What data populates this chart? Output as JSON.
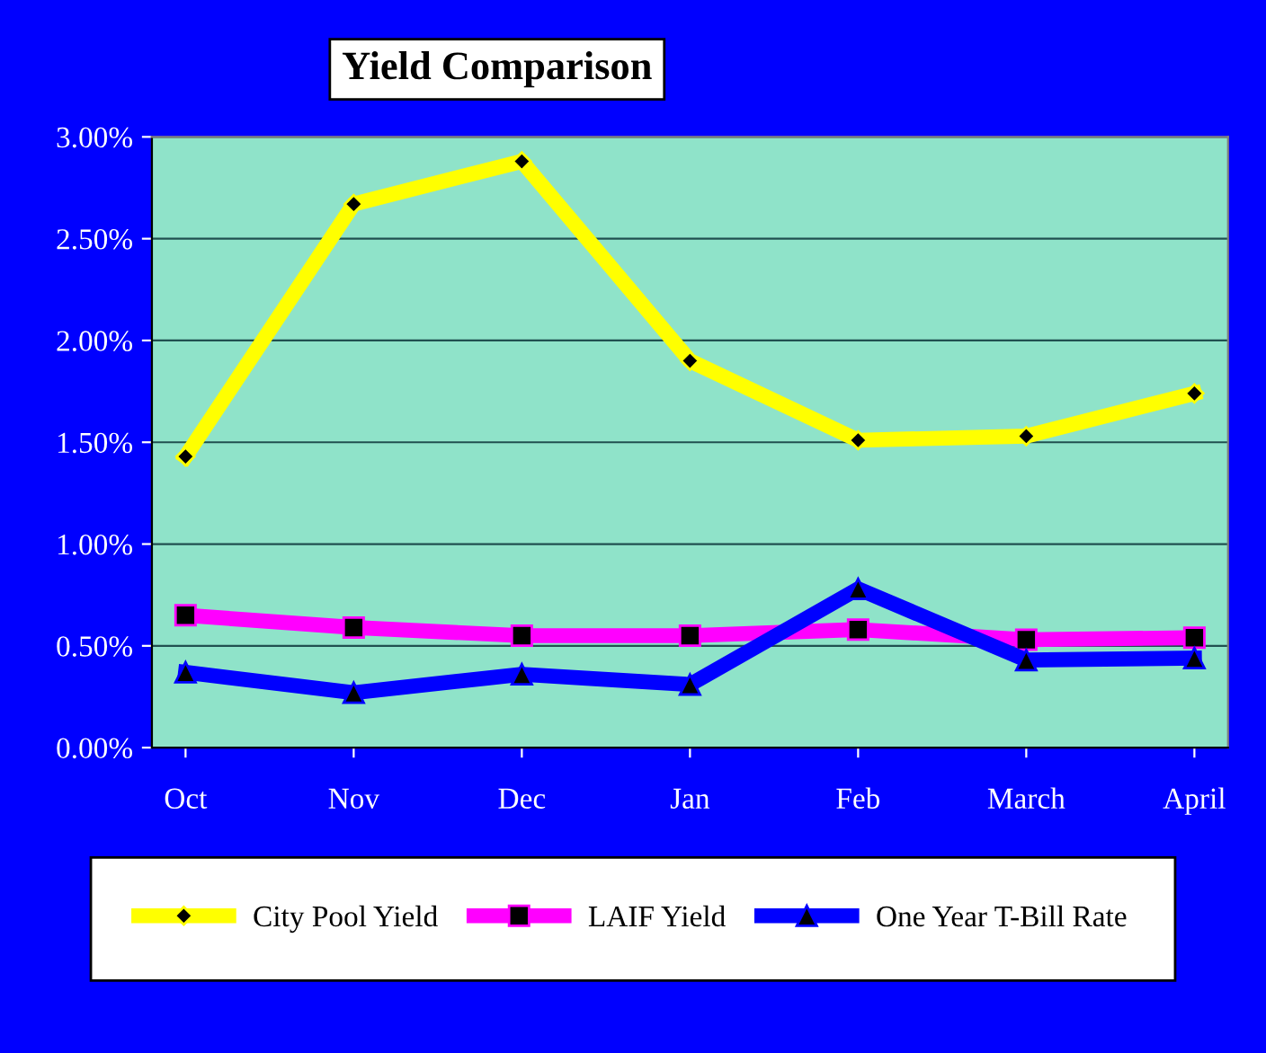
{
  "chart_data": {
    "type": "line",
    "title": "Yield Comparison",
    "categories": [
      "Oct",
      "Nov",
      "Dec",
      "Jan",
      "Feb",
      "March",
      "April"
    ],
    "series": [
      {
        "name": "City Pool Yield",
        "color": "#ffff00",
        "marker": "diamond",
        "values": [
          1.43,
          2.67,
          2.88,
          1.9,
          1.51,
          1.53,
          1.74
        ]
      },
      {
        "name": "LAIF Yield",
        "color": "#ff00ff",
        "marker": "square",
        "values": [
          0.65,
          0.59,
          0.55,
          0.55,
          0.58,
          0.53,
          0.54
        ]
      },
      {
        "name": "One Year T-Bill Rate",
        "color": "#0000ff",
        "marker": "triangle",
        "values": [
          0.37,
          0.27,
          0.36,
          0.31,
          0.78,
          0.43,
          0.44
        ]
      }
    ],
    "ylim": [
      0,
      3
    ],
    "yticks": [
      {
        "value": 0,
        "label": "0.00%"
      },
      {
        "value": 0.5,
        "label": "0.50%"
      },
      {
        "value": 1,
        "label": "1.00%"
      },
      {
        "value": 1.5,
        "label": "1.50%"
      },
      {
        "value": 2,
        "label": "2.00%"
      },
      {
        "value": 2.5,
        "label": "2.50%"
      },
      {
        "value": 3,
        "label": "3.00%"
      }
    ],
    "grid": "y",
    "legend": "bottom"
  }
}
